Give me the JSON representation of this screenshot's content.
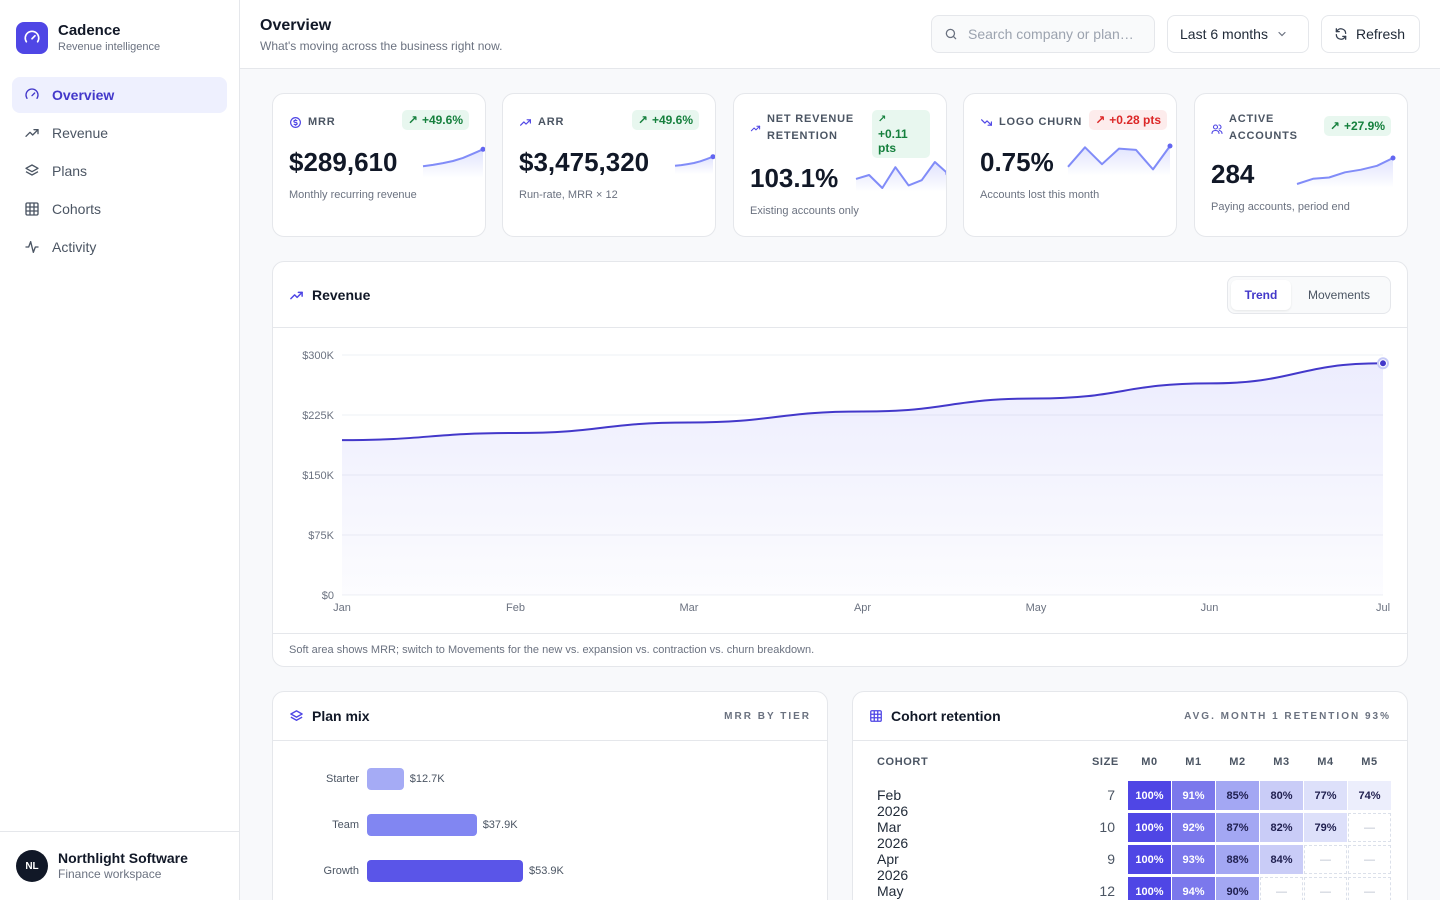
{
  "brand": {
    "name": "Cadence",
    "subtitle": "Revenue intelligence"
  },
  "nav": [
    {
      "label": "Overview",
      "icon": "gauge-icon",
      "active": true
    },
    {
      "label": "Revenue",
      "icon": "trend-icon"
    },
    {
      "label": "Plans",
      "icon": "layers-icon"
    },
    {
      "label": "Cohorts",
      "icon": "grid-icon"
    },
    {
      "label": "Activity",
      "icon": "pulse-icon"
    }
  ],
  "user": {
    "initials": "NL",
    "name": "Northlight Software",
    "workspace": "Finance workspace"
  },
  "header": {
    "title": "Overview",
    "subtitle": "What's moving across the business right now.",
    "search_placeholder": "Search company or plan…",
    "range_label": "Last 6 months",
    "refresh_label": "Refresh"
  },
  "kpis": [
    {
      "label": "MRR",
      "delta": "+49.6%",
      "delta_dir": "up",
      "value": "$289,610",
      "note": "Monthly recurring revenue",
      "spark": [
        0.3,
        0.35,
        0.42,
        0.5,
        0.62,
        0.78,
        0.95
      ]
    },
    {
      "label": "ARR",
      "delta": "+49.6%",
      "delta_dir": "up",
      "value": "$3,475,320",
      "note": "Run-rate, MRR × 12",
      "spark": [
        0.3,
        0.35,
        0.42,
        0.5,
        0.62,
        0.78,
        0.95
      ]
    },
    {
      "label": "Net revenue retention",
      "delta": "+0.11 pts",
      "delta_dir": "up",
      "value": "103.1%",
      "note": "Existing accounts only",
      "spark": [
        0.35,
        0.5,
        0.0,
        0.8,
        0.1,
        0.3,
        1.0,
        0.55
      ]
    },
    {
      "label": "Logo churn",
      "delta": "+0.28 pts",
      "delta_dir": "bad",
      "value": "0.75%",
      "note": "Accounts lost this month",
      "spark": [
        0.2,
        0.95,
        0.3,
        0.9,
        0.85,
        0.1,
        1.0
      ]
    },
    {
      "label": "Active accounts",
      "delta": "+27.9%",
      "delta_dir": "up",
      "value": "284",
      "note": "Paying accounts, period end",
      "spark": [
        0.0,
        0.2,
        0.25,
        0.45,
        0.55,
        0.7,
        1.0
      ]
    }
  ],
  "revenue": {
    "title": "Revenue",
    "tabs": [
      "Trend",
      "Movements"
    ],
    "active_tab": "Trend",
    "footnote": "Soft area shows MRR; switch to Movements for the new vs. expansion vs. contraction vs. churn breakdown."
  },
  "chart_data": {
    "type": "area",
    "title": "Revenue",
    "categories": [
      "Jan",
      "Feb",
      "Mar",
      "Apr",
      "May",
      "Jun",
      "Jul"
    ],
    "series": [
      {
        "name": "MRR",
        "values": [
          193600,
          202500,
          215600,
          229400,
          245600,
          264500,
          289610
        ]
      }
    ],
    "yticks": [
      "$0",
      "$75K",
      "$150K",
      "$225K",
      "$300K"
    ],
    "ylim": [
      0,
      300000
    ],
    "grid": true
  },
  "plan_mix": {
    "title": "Plan mix",
    "meta": "MRR by tier",
    "rows": [
      {
        "name": "Starter",
        "value": 12.7,
        "label": "$12.7K",
        "color": "#a5abf5"
      },
      {
        "name": "Team",
        "value": 37.9,
        "label": "$37.9K",
        "color": "#8186f2"
      },
      {
        "name": "Growth",
        "value": 53.9,
        "label": "$53.9K",
        "color": "#5a55e8"
      }
    ]
  },
  "cohort": {
    "title": "Cohort retention",
    "meta": "Avg. month 1 retention 93%",
    "headers": [
      "Cohort",
      "Size",
      "M0",
      "M1",
      "M2",
      "M3",
      "M4",
      "M5"
    ],
    "rows": [
      {
        "name": "Feb 2026",
        "size": "7",
        "cells": [
          "100%",
          "91%",
          "85%",
          "80%",
          "77%",
          "74%"
        ]
      },
      {
        "name": "Mar 2026",
        "size": "10",
        "cells": [
          "100%",
          "92%",
          "87%",
          "82%",
          "79%",
          "—"
        ]
      },
      {
        "name": "Apr 2026",
        "size": "9",
        "cells": [
          "100%",
          "93%",
          "88%",
          "84%",
          "—",
          "—"
        ]
      },
      {
        "name": "May 2026",
        "size": "12",
        "cells": [
          "100%",
          "94%",
          "90%",
          "—",
          "—",
          "—"
        ]
      }
    ]
  }
}
